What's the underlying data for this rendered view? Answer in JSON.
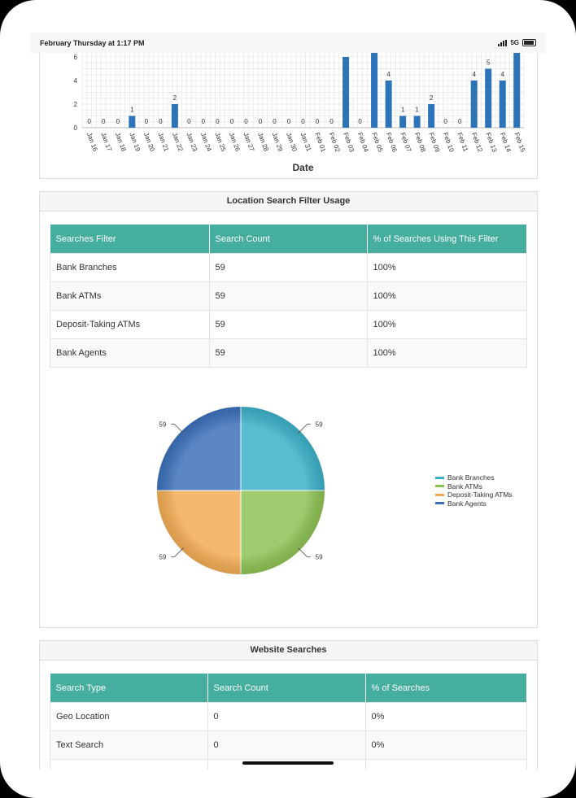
{
  "status": {
    "time": "February Thursday at 1:17 PM",
    "network": "5G"
  },
  "date_chart": {
    "type": "bar",
    "xlabel": "Date",
    "ylabel": "",
    "y_ticks": [
      "0",
      "2",
      "4",
      "6"
    ],
    "ylim": [
      0,
      6.5
    ],
    "color": "#2c73b8",
    "categories": [
      "Jan 16",
      "Jan 17",
      "Jan 18",
      "Jan 19",
      "Jan 20",
      "Jan 21",
      "Jan 22",
      "Jan 23",
      "Jan 24",
      "Jan 25",
      "Jan 26",
      "Jan 27",
      "Jan 28",
      "Jan 29",
      "Jan 30",
      "Jan 31",
      "Feb 01",
      "Feb 02",
      "Feb 03",
      "Feb 04",
      "Feb 05",
      "Feb 06",
      "Feb 07",
      "Feb 08",
      "Feb 09",
      "Feb 10",
      "Feb 11",
      "Feb 12",
      "Feb 13",
      "Feb 14",
      "Feb 15"
    ],
    "values": [
      0,
      0,
      0,
      1,
      0,
      0,
      2,
      0,
      0,
      0,
      0,
      0,
      0,
      0,
      0,
      0,
      0,
      0,
      6,
      0,
      7,
      4,
      1,
      1,
      2,
      0,
      0,
      4,
      5,
      4,
      7
    ],
    "labels": [
      "0",
      "0",
      "0",
      "1",
      "0",
      "0",
      "2",
      "0",
      "0",
      "0",
      "0",
      "0",
      "0",
      "0",
      "0",
      "0",
      "0",
      "0",
      "",
      "0",
      "",
      "4",
      "1",
      "1",
      "2",
      "0",
      "0",
      "4",
      "5",
      "4",
      ""
    ]
  },
  "filter_usage": {
    "title": "Location Search Filter Usage",
    "headers": [
      "Searches Filter",
      "Search Count",
      "% of Searches Using This Filter"
    ],
    "rows": [
      [
        "Bank Branches",
        "59",
        "100%"
      ],
      [
        "Bank ATMs",
        "59",
        "100%"
      ],
      [
        "Deposit-Taking ATMs",
        "59",
        "100%"
      ],
      [
        "Bank Agents",
        "59",
        "100%"
      ]
    ]
  },
  "chart_data": {
    "type": "pie",
    "slices": [
      {
        "name": "Bank Branches",
        "value": 59,
        "label": "59",
        "color": "#3aafc7"
      },
      {
        "name": "Bank ATMs",
        "value": 59,
        "label": "59",
        "color": "#8cc152"
      },
      {
        "name": "Deposit-Taking ATMs",
        "value": 59,
        "label": "59",
        "color": "#f2ab53"
      },
      {
        "name": "Bank Agents",
        "value": 59,
        "label": "59",
        "color": "#3a6fba"
      }
    ],
    "legend": "right"
  },
  "website_searches": {
    "title": "Website Searches",
    "headers": [
      "Search Type",
      "Search Count",
      "% of Searches"
    ],
    "rows": [
      [
        "Geo Location",
        "0",
        "0%"
      ],
      [
        "Text Search",
        "0",
        "0%"
      ]
    ]
  }
}
